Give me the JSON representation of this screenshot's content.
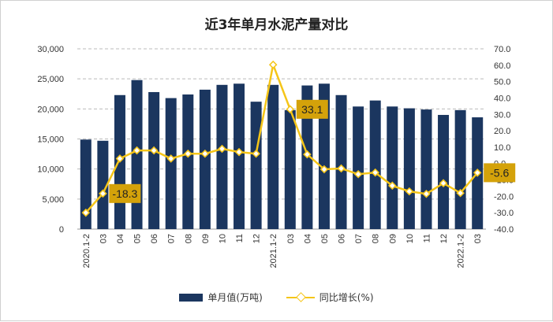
{
  "chart_data": {
    "type": "bar",
    "title": "近3年单月水泥产量对比",
    "categories": [
      "2020.1-2",
      "03",
      "04",
      "05",
      "06",
      "07",
      "08",
      "09",
      "10",
      "11",
      "12",
      "2021.1-2",
      "03",
      "04",
      "05",
      "06",
      "07",
      "08",
      "09",
      "10",
      "11",
      "12",
      "2022.1-2",
      "03"
    ],
    "series": [
      {
        "name": "单月值(万吨)",
        "type": "bar",
        "axis": "left",
        "color": "#1b365f",
        "values": [
          14900,
          14700,
          22300,
          24800,
          22800,
          21800,
          22400,
          23200,
          24000,
          24200,
          21200,
          24000,
          19800,
          23900,
          24200,
          22300,
          20400,
          21400,
          20400,
          20100,
          19900,
          19000,
          19800,
          18600
        ]
      },
      {
        "name": "同比增长(%)",
        "type": "line",
        "axis": "right",
        "color": "#f5c518",
        "values": [
          -30.0,
          -18.3,
          3.0,
          8.0,
          8.0,
          3.0,
          6.0,
          6.0,
          9.0,
          7.0,
          6.0,
          60.3,
          33.1,
          5.6,
          -3.5,
          -3.0,
          -6.5,
          -5.5,
          -13.5,
          -17.0,
          -18.5,
          -12.0,
          -18.0,
          -5.6
        ]
      }
    ],
    "left_axis": {
      "ylim": [
        0,
        30000
      ],
      "ticks": [
        "0",
        "5,000",
        "10,000",
        "15,000",
        "20,000",
        "25,000",
        "30,000"
      ]
    },
    "right_axis": {
      "ylim": [
        -40,
        70
      ],
      "ticks": [
        "-40.0",
        "-30.0",
        "-20.0",
        "-10.0",
        "0.0",
        "10.0",
        "20.0",
        "30.0",
        "40.0",
        "50.0",
        "60.0",
        "70.0"
      ]
    },
    "annotations": [
      {
        "index": 1,
        "label": "-18.3"
      },
      {
        "index": 12,
        "label": "33.1"
      },
      {
        "index": 23,
        "label": "-5.6"
      }
    ],
    "grid": true,
    "legend": "bottom"
  }
}
